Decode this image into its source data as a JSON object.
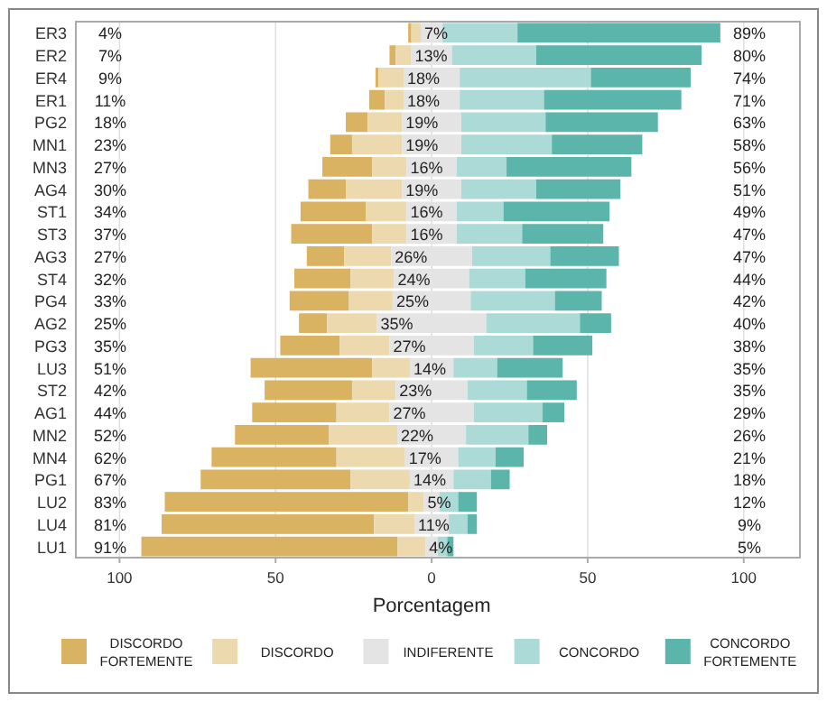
{
  "chart_data": {
    "type": "bar",
    "orientation": "horizontal",
    "xlabel": "Porcentagem",
    "categories": [
      "ER3",
      "ER2",
      "ER4",
      "ER1",
      "PG2",
      "MN1",
      "MN3",
      "AG4",
      "ST1",
      "ST3",
      "AG3",
      "ST4",
      "PG4",
      "AG2",
      "PG3",
      "LU3",
      "ST2",
      "AG1",
      "MN2",
      "MN4",
      "PG1",
      "LU2",
      "LU4",
      "LU1"
    ],
    "xlim": [
      -114,
      118
    ],
    "xticks": [
      {
        "value": -100,
        "label": "100"
      },
      {
        "value": -50,
        "label": "50"
      },
      0,
      50,
      100
    ],
    "grid": "x",
    "legend": "bottom",
    "series": [
      {
        "name": "DISCORDO FORTEMENTE",
        "color": "#d9b262",
        "values": [
          1,
          2,
          1,
          5,
          7,
          7,
          16,
          12,
          21,
          26,
          12,
          18,
          19,
          9,
          19,
          39,
          28,
          27,
          30,
          40,
          48,
          78,
          68,
          82
        ],
        "base": [
          -7.5,
          -13.5,
          -18,
          -20,
          -27.5,
          -32.5,
          -35,
          -39.5,
          -42,
          -45,
          -40,
          -44,
          -45.5,
          -42.5,
          -48.5,
          -58,
          -53.5,
          -57.5,
          -63,
          -70.5,
          -74,
          -85.5,
          -86.5,
          -93
        ]
      },
      {
        "name": "DISCORDO",
        "color": "#ecd9ae",
        "values": [
          3,
          5,
          8,
          6,
          11,
          16,
          11,
          18,
          13,
          11,
          15,
          14,
          14,
          16,
          16,
          12,
          14,
          17,
          22,
          22,
          19,
          5,
          13,
          9
        ],
        "base": [
          -6.5,
          -11.5,
          -17,
          -15,
          -20.5,
          -25.5,
          -19,
          -27.5,
          -21,
          -19,
          -28,
          -26,
          -26.5,
          -33.5,
          -29.5,
          -19,
          -25.5,
          -30.5,
          -33,
          -30.5,
          -26,
          -7.5,
          -18.5,
          -11
        ]
      },
      {
        "name": "INDIFERENTE",
        "color": "#e4e4e4",
        "values": [
          7,
          13,
          18,
          18,
          19,
          19,
          16,
          19,
          16,
          16,
          26,
          24,
          25,
          35,
          27,
          14,
          23,
          27,
          22,
          17,
          14,
          5,
          11,
          4
        ],
        "base": [
          -3.5,
          -6.5,
          -9,
          -9,
          -9.5,
          -9.5,
          -8,
          -9.5,
          -8,
          -8,
          -13,
          -12,
          -12.5,
          -17.5,
          -13.5,
          -7,
          -11.5,
          -13.5,
          -11,
          -8.5,
          -7,
          -2.5,
          -5.5,
          -2
        ],
        "value_labels": [
          "7%",
          "13%",
          "18%",
          "18%",
          "19%",
          "19%",
          "16%",
          "19%",
          "16%",
          "16%",
          "26%",
          "24%",
          "25%",
          "35%",
          "27%",
          "14%",
          "23%",
          "27%",
          "22%",
          "17%",
          "14%",
          "5%",
          "11%",
          "4%"
        ]
      },
      {
        "name": "CONCORDO",
        "color": "#acdad6",
        "values": [
          24,
          27,
          42,
          27,
          27,
          29,
          16,
          24,
          15,
          21,
          25,
          18,
          27,
          30,
          19,
          14,
          19,
          22,
          20,
          12,
          12,
          6,
          6,
          3
        ],
        "base": [
          3.5,
          6.5,
          9,
          9,
          9.5,
          9.5,
          8,
          9.5,
          8,
          8,
          13,
          12,
          12.5,
          17.5,
          13.5,
          7,
          11.5,
          13.5,
          11,
          8.5,
          7,
          2.5,
          5.5,
          2
        ]
      },
      {
        "name": "CONCORDO FORTEMENTE",
        "color": "#5bb5aa",
        "values": [
          65,
          53,
          32,
          44,
          36,
          29,
          40,
          27,
          34,
          26,
          22,
          26,
          15,
          10,
          19,
          21,
          16,
          7,
          6,
          9,
          6,
          6,
          3,
          2
        ],
        "base": [
          27.5,
          33.5,
          51,
          36,
          36.5,
          38.5,
          24,
          33.5,
          23,
          29,
          38,
          30,
          39.5,
          47.5,
          32.5,
          21,
          30.5,
          35.5,
          31,
          20.5,
          19,
          8.5,
          11.5,
          5
        ]
      }
    ],
    "annotations": [
      "4%",
      "7%",
      "9%",
      "11%",
      "18%",
      "23%",
      "27%",
      "30%",
      "34%",
      "37%",
      "27%",
      "32%",
      "33%",
      "25%",
      "35%",
      "51%",
      "42%",
      "44%",
      "52%",
      "62%",
      "67%",
      "83%",
      "81%",
      "91%",
      "89%",
      "80%",
      "74%",
      "71%",
      "63%",
      "58%",
      "56%",
      "51%",
      "49%",
      "47%",
      "47%",
      "44%",
      "42%",
      "40%",
      "38%",
      "35%",
      "35%",
      "29%",
      "26%",
      "21%",
      "18%",
      "12%",
      "9%",
      "5%"
    ]
  }
}
